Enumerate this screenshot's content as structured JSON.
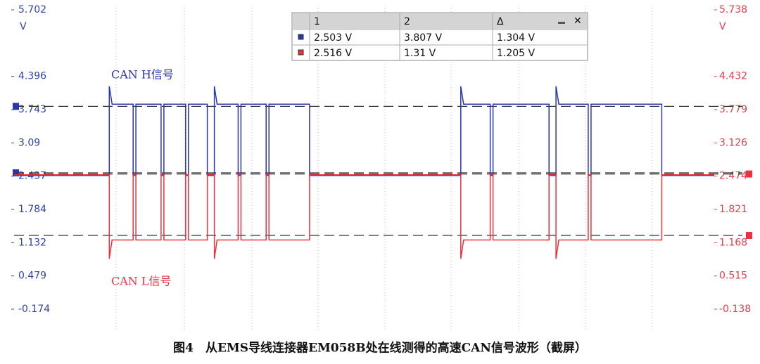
{
  "chart_data": {
    "type": "line",
    "xlim": [
      0,
      100
    ],
    "ylim": [
      -0.174,
      5.702
    ],
    "yticks": [
      5.702,
      4.396,
      3.743,
      3.09,
      2.437,
      1.784,
      1.132,
      0.479,
      -0.174
    ],
    "y_unit": "V",
    "y2lim": [
      -0.138,
      5.738
    ],
    "y2ticks": [
      5.738,
      4.432,
      3.779,
      3.126,
      2.474,
      1.821,
      1.168,
      0.515,
      -0.138
    ],
    "y2_unit": "V",
    "series": [
      {
        "name": "CAN H信号",
        "color": "#2a35b0",
        "x": [
          0,
          13.6,
          13.6,
          14,
          17,
          17,
          17.4,
          17.4,
          21,
          21,
          21.4,
          21.4,
          24.5,
          24.5,
          24.9,
          24.9,
          27.6,
          27.6,
          28.6,
          28.6,
          29,
          32,
          32,
          32.4,
          32.4,
          36,
          36,
          36.4,
          36.4,
          42.2,
          42.2,
          63.8,
          63.8,
          64.2,
          68,
          68,
          68.4,
          68.4,
          76.4,
          76.4,
          77.4,
          77.4,
          77.8,
          82,
          82,
          82.4,
          82.4,
          92.5,
          92.5,
          100
        ],
        "values": [
          2.45,
          2.45,
          4.2,
          3.85,
          3.85,
          2.45,
          2.45,
          3.85,
          3.85,
          2.45,
          2.45,
          3.85,
          3.85,
          2.45,
          2.45,
          3.85,
          3.85,
          2.45,
          2.45,
          4.2,
          3.85,
          3.85,
          2.45,
          2.45,
          3.85,
          3.85,
          2.45,
          2.45,
          3.85,
          3.85,
          2.45,
          2.45,
          4.2,
          3.85,
          3.85,
          2.45,
          2.45,
          3.85,
          3.85,
          2.45,
          2.45,
          4.2,
          3.85,
          3.85,
          2.45,
          2.45,
          3.85,
          3.85,
          2.45,
          2.45
        ]
      },
      {
        "name": "CAN L信号",
        "color": "#e8333f",
        "axis": "y2",
        "x": [
          0,
          13.6,
          13.6,
          14,
          17,
          17,
          17.4,
          17.4,
          21,
          21,
          21.4,
          21.4,
          24.5,
          24.5,
          24.9,
          24.9,
          27.6,
          27.6,
          28.6,
          28.6,
          29,
          32,
          32,
          32.4,
          32.4,
          36,
          36,
          36.4,
          36.4,
          42.2,
          42.2,
          63.8,
          63.8,
          64.2,
          68,
          68,
          68.4,
          68.4,
          76.4,
          76.4,
          77.4,
          77.4,
          77.8,
          82,
          82,
          82.4,
          82.4,
          92.5,
          92.5,
          100
        ],
        "values": [
          2.5,
          2.5,
          0.85,
          1.22,
          1.22,
          2.5,
          2.5,
          1.22,
          1.22,
          2.5,
          2.5,
          1.22,
          1.22,
          2.5,
          2.5,
          1.22,
          1.22,
          2.5,
          2.5,
          0.85,
          1.22,
          1.22,
          2.5,
          2.5,
          1.22,
          1.22,
          2.5,
          2.5,
          1.22,
          1.22,
          2.5,
          2.5,
          0.85,
          1.22,
          1.22,
          2.5,
          2.5,
          1.22,
          1.22,
          2.5,
          2.5,
          0.85,
          1.22,
          1.22,
          2.5,
          2.5,
          1.22,
          1.22,
          2.5,
          2.5
        ]
      }
    ],
    "cursor_table": {
      "headers": [
        "1",
        "2",
        "Δ"
      ],
      "rows": [
        {
          "color": "#2a35b0",
          "values": [
            2.503,
            3.807,
            1.304
          ],
          "value_labels": [
            "2.503 V",
            "3.807 V",
            "1.304 V"
          ]
        },
        {
          "color": "#e8333f",
          "values": [
            2.516,
            1.31,
            1.205
          ],
          "value_labels": [
            "2.516 V",
            "1.31 V",
            "1.205 V"
          ]
        }
      ]
    },
    "caption": "图4　从EMS导线连接器EM058B处在线测得的高速CAN信号波形（截屏）"
  }
}
